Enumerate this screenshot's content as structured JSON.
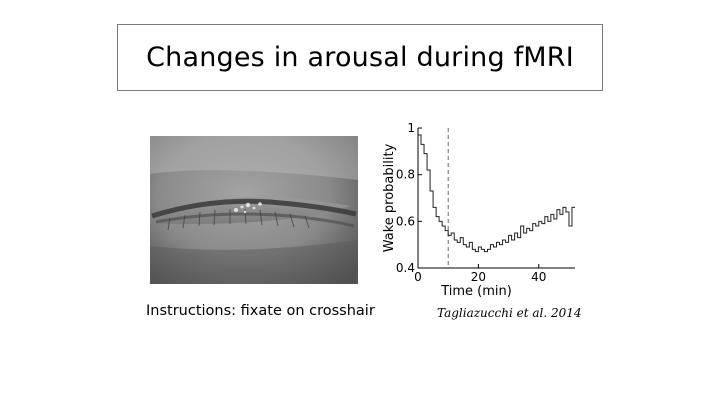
{
  "slide": {
    "title": "Changes in arousal during fMRI",
    "caption": "Instructions: fixate on crosshair",
    "citation": "Tagliazucchi et al. 2014"
  },
  "photo": {
    "overlay_lines": [
      "",
      ""
    ],
    "overlay_color": "#c0392b"
  },
  "chart_data": {
    "type": "line",
    "title": "",
    "xlabel": "Time (min)",
    "ylabel": "Wake probability",
    "xlim": [
      0,
      52
    ],
    "ylim": [
      0.4,
      1.0
    ],
    "xticks": [
      0,
      20,
      40
    ],
    "yticks": [
      0.4,
      0.6,
      0.8,
      1
    ],
    "ytick_labels": [
      "0.4",
      "0.6",
      "0.8",
      "1"
    ],
    "dashed_vline_x": 10,
    "series": [
      {
        "x": [
          0,
          1,
          2,
          3,
          4,
          5,
          6,
          7,
          8,
          9,
          10,
          11,
          12,
          13,
          14,
          15,
          16,
          17,
          18,
          19,
          20,
          21,
          22,
          23,
          24,
          25,
          26,
          27,
          28,
          29,
          30,
          31,
          32,
          33,
          34,
          35,
          36,
          37,
          38,
          39,
          40,
          41,
          42,
          43,
          44,
          45,
          46,
          47,
          48,
          49,
          50,
          51,
          52
        ],
        "values": [
          0.97,
          0.93,
          0.89,
          0.82,
          0.73,
          0.66,
          0.62,
          0.6,
          0.58,
          0.56,
          0.54,
          0.55,
          0.52,
          0.51,
          0.53,
          0.5,
          0.49,
          0.51,
          0.48,
          0.47,
          0.49,
          0.48,
          0.47,
          0.48,
          0.5,
          0.49,
          0.51,
          0.5,
          0.52,
          0.51,
          0.54,
          0.52,
          0.55,
          0.53,
          0.58,
          0.55,
          0.57,
          0.56,
          0.59,
          0.58,
          0.6,
          0.59,
          0.62,
          0.6,
          0.63,
          0.61,
          0.65,
          0.63,
          0.66,
          0.64,
          0.58,
          0.66,
          0.66
        ]
      }
    ]
  }
}
